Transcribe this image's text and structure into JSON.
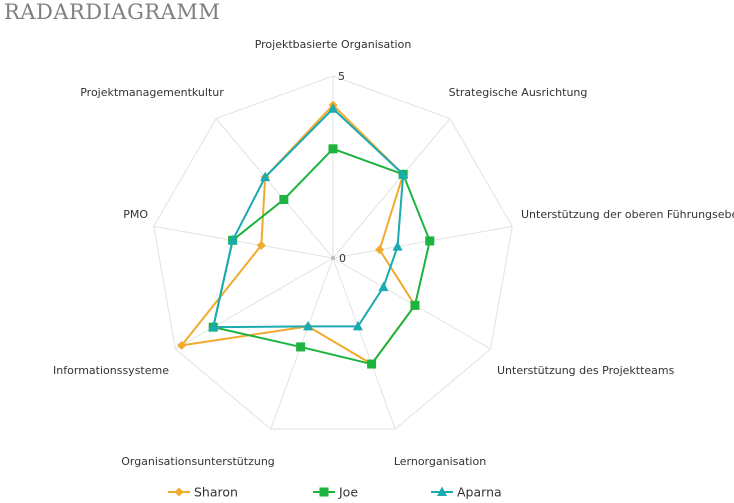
{
  "title": "RADARDIAGRAMM",
  "chart_data": {
    "type": "radar",
    "title": "RADARDIAGRAMM",
    "categories": [
      "Projektbasierte Organisation",
      "Strategische Ausrichtung",
      "Unterstützung der oberen Führungsebene",
      "Unterstützung des Projektteams",
      "Lernorganisation",
      "Organisationsunterstützung",
      "Informationssysteme",
      "PMO",
      "Projektmanagementkultur"
    ],
    "rlim": [
      0,
      5
    ],
    "tick_labels": [
      "0",
      "5"
    ],
    "grid": true,
    "legend_position": "bottom",
    "series": [
      {
        "name": "Sharon",
        "color": "#F0AB2E",
        "marker": "diamond",
        "values": [
          4.2,
          3.0,
          1.3,
          2.6,
          3.1,
          2.0,
          4.8,
          2.0,
          2.9
        ]
      },
      {
        "name": "Joe",
        "color": "#1CB33E",
        "marker": "square",
        "values": [
          3.0,
          3.0,
          2.7,
          2.6,
          3.1,
          2.6,
          3.8,
          2.8,
          2.1
        ]
      },
      {
        "name": "Aparna",
        "color": "#1BAAB1",
        "marker": "triangle",
        "values": [
          4.1,
          3.0,
          1.8,
          1.6,
          2.0,
          2.0,
          3.8,
          2.8,
          2.9
        ]
      }
    ]
  }
}
